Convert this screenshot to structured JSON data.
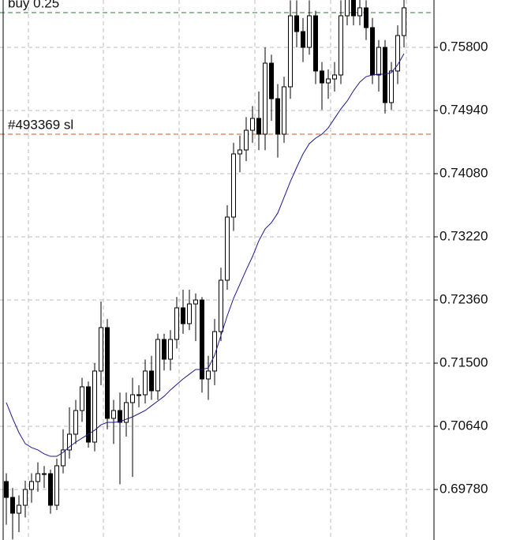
{
  "chart_data": {
    "type": "candlestick",
    "ylim": [
      0.69092,
      0.76445
    ],
    "yticks": [
      {
        "value": 0.758,
        "label": "0.75800"
      },
      {
        "value": 0.7494,
        "label": "0.74940"
      },
      {
        "value": 0.7408,
        "label": "0.74080"
      },
      {
        "value": 0.7322,
        "label": "0.73220"
      },
      {
        "value": 0.7236,
        "label": "0.72360"
      },
      {
        "value": 0.715,
        "label": "0.71500"
      },
      {
        "value": 0.7064,
        "label": "0.70640"
      },
      {
        "value": 0.6978,
        "label": "0.69780"
      }
    ],
    "grid": true,
    "open": [
      0.69888,
      0.69672,
      0.69457,
      0.69565,
      0.6978,
      0.69888,
      0.69995,
      0.69995,
      0.69565,
      0.70103,
      0.70318,
      0.70533,
      0.70855,
      0.71178,
      0.70425,
      0.71393,
      0.71984,
      0.70748,
      0.70855,
      0.70694,
      0.70963,
      0.7107,
      0.7107,
      0.71393,
      0.71124,
      0.71823,
      0.71554,
      0.71823,
      0.72253,
      0.72038,
      0.72306,
      0.7236,
      0.71285,
      0.71393,
      0.7193,
      0.72629,
      0.73489,
      0.74349,
      0.74403,
      0.74671,
      0.74833,
      0.74618,
      0.75585,
      0.75101,
      0.74618,
      0.75263,
      0.7623,
      0.76015,
      0.758,
      0.7623,
      0.75478,
      0.75316,
      0.7537,
      0.75424,
      0.7623,
      0.76553,
      0.7623,
      0.76338,
      0.76069,
      0.75424,
      0.758,
      0.75048,
      0.75478,
      0.75961
    ],
    "high": [
      0.7,
      0.698,
      0.697,
      0.699,
      0.7,
      0.7015,
      0.701,
      0.7005,
      0.702,
      0.706,
      0.709,
      0.71,
      0.713,
      0.7125,
      0.715,
      0.7234,
      0.721,
      0.71,
      0.711,
      0.711,
      0.713,
      0.712,
      0.7155,
      0.716,
      0.719,
      0.719,
      0.7195,
      0.724,
      0.725,
      0.725,
      0.7245,
      0.724,
      0.716,
      0.721,
      0.728,
      0.7365,
      0.745,
      0.746,
      0.7485,
      0.75,
      0.752,
      0.758,
      0.757,
      0.753,
      0.754,
      0.7644,
      0.7644,
      0.762,
      0.7644,
      0.763,
      0.756,
      0.755,
      0.756,
      0.7644,
      0.767,
      0.766,
      0.765,
      0.7644,
      0.762,
      0.759,
      0.759,
      0.756,
      0.761,
      0.765
    ],
    "low": [
      0.693,
      0.691,
      0.692,
      0.694,
      0.696,
      0.6975,
      0.698,
      0.6945,
      0.695,
      0.7,
      0.702,
      0.704,
      0.707,
      0.7035,
      0.703,
      0.712,
      0.706,
      0.704,
      0.6985,
      0.705,
      0.6995,
      0.709,
      0.7095,
      0.71,
      0.71,
      0.714,
      0.714,
      0.717,
      0.719,
      0.7195,
      0.718,
      0.711,
      0.71,
      0.712,
      0.718,
      0.725,
      0.733,
      0.741,
      0.7425,
      0.745,
      0.744,
      0.744,
      0.748,
      0.743,
      0.745,
      0.751,
      0.758,
      0.756,
      0.757,
      0.753,
      0.7495,
      0.751,
      0.752,
      0.753,
      0.761,
      0.761,
      0.761,
      0.759,
      0.753,
      0.752,
      0.749,
      0.7495,
      0.753,
      0.758
    ],
    "close": [
      0.69672,
      0.69457,
      0.69565,
      0.6978,
      0.69888,
      0.69995,
      0.69995,
      0.69565,
      0.70103,
      0.70318,
      0.70533,
      0.70855,
      0.71178,
      0.70425,
      0.71393,
      0.71984,
      0.70748,
      0.70855,
      0.70694,
      0.70963,
      0.7107,
      0.7107,
      0.71393,
      0.71124,
      0.71823,
      0.71554,
      0.71823,
      0.72253,
      0.72038,
      0.72306,
      0.7236,
      0.71285,
      0.71393,
      0.7193,
      0.72629,
      0.73489,
      0.74349,
      0.74403,
      0.74671,
      0.74833,
      0.74618,
      0.75585,
      0.75101,
      0.74618,
      0.75263,
      0.7623,
      0.76015,
      0.758,
      0.7623,
      0.75478,
      0.75316,
      0.7537,
      0.75424,
      0.7623,
      0.76553,
      0.7623,
      0.76338,
      0.76069,
      0.75424,
      0.758,
      0.75048,
      0.75478,
      0.75961,
      0.76338
    ],
    "moving_average": {
      "color": "#1a1a8c",
      "values": [
        0.70963,
        0.70748,
        0.70554,
        0.70404,
        0.7035,
        0.70318,
        0.70264,
        0.70231,
        0.70231,
        0.70285,
        0.70361,
        0.70425,
        0.70479,
        0.70533,
        0.70587,
        0.70661,
        0.70694,
        0.70694,
        0.70704,
        0.70737,
        0.70769,
        0.70812,
        0.70855,
        0.7092,
        0.70984,
        0.71049,
        0.71135,
        0.7121,
        0.71285,
        0.7135,
        0.71414,
        0.71414,
        0.71436,
        0.71608,
        0.71876,
        0.72145,
        0.72382,
        0.72575,
        0.72769,
        0.72951,
        0.73166,
        0.73328,
        0.73414,
        0.73543,
        0.73758,
        0.73973,
        0.74166,
        0.74349,
        0.74489,
        0.74564,
        0.74618,
        0.74704,
        0.74833,
        0.74962,
        0.75069,
        0.75209,
        0.75327,
        0.75402,
        0.75424,
        0.75435,
        0.75435,
        0.75456,
        0.75564,
        0.75714
      ]
    },
    "levels": [
      {
        "label": "buy 0.25",
        "value": 0.76273,
        "color": "#2e7d32"
      },
      {
        "label": "#493369 sl",
        "value": 0.74617,
        "color": "#d9542b"
      }
    ]
  }
}
